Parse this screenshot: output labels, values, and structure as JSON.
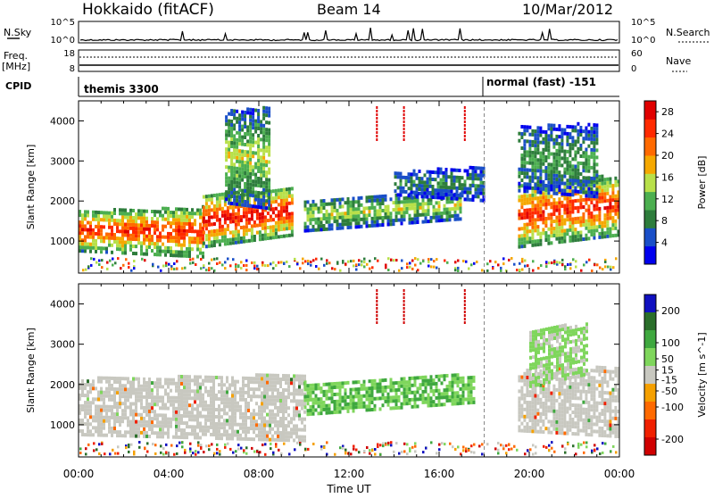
{
  "header": {
    "site": "Hokkaido (fitACF)",
    "beam": "Beam 14",
    "date": "10/Mar/2012"
  },
  "panel_labels": {
    "nsky": "N.Sky",
    "nsearch": "N.Search",
    "freq_top": "Freq.",
    "freq_unit": "[MHz]",
    "nave": "Nave",
    "cpid": "CPID"
  },
  "noise_axis": {
    "left_top": "10^5",
    "left_bottom": "10^0",
    "right_top": "10^5",
    "right_bottom": "10^0"
  },
  "freq_axis": {
    "left_top": "18",
    "left_bottom": "8",
    "right_top": "60",
    "right_bottom": "0"
  },
  "cpid": [
    {
      "label": "themis 3300",
      "start": "00:00",
      "end": "18:00"
    },
    {
      "label": "normal (fast) -151",
      "start": "18:00",
      "end": "24:00"
    }
  ],
  "colors": {
    "power_scale": [
      "#0000ee",
      "#1a4fc8",
      "#2e7d3c",
      "#4caf50",
      "#b8e04a",
      "#f5a800",
      "#ff6a00",
      "#ff2a00",
      "#e00000"
    ],
    "velocity_scale": [
      "#1010c0",
      "#2a6e2a",
      "#3fa83f",
      "#7fd65c",
      "#c8c8c0",
      "#f5a000",
      "#ff6a00",
      "#f02000",
      "#d00000"
    ],
    "ground_gray": "#c8c8c0"
  },
  "chart_data": [
    {
      "type": "heatmap",
      "title": "Power",
      "ylabel": "Slant Range [km]",
      "xlabel": "Time UT",
      "x_ticks": [
        "00:00",
        "04:00",
        "08:00",
        "12:00",
        "16:00",
        "20:00",
        "00:00"
      ],
      "y_ticks": [
        1000,
        2000,
        3000,
        4000
      ],
      "ylim": [
        200,
        4500
      ],
      "colorbar": {
        "label": "Power [dB]",
        "ticks": [
          4,
          8,
          12,
          16,
          20,
          24,
          28
        ],
        "range": [
          0,
          30
        ]
      },
      "echo_bands": [
        {
          "t_start": 0,
          "t_end": 5.5,
          "range_low": 800,
          "range_high": 1800,
          "power": 24
        },
        {
          "t_start": 5.5,
          "t_end": 9.5,
          "range_low": 900,
          "range_high": 2200,
          "power": 26
        },
        {
          "t_start": 6.5,
          "t_end": 8.5,
          "range_low": 2000,
          "range_high": 4300,
          "power": 14
        },
        {
          "t_start": 10,
          "t_end": 17,
          "range_low": 1300,
          "range_high": 2100,
          "power": 14
        },
        {
          "t_start": 14,
          "t_end": 18,
          "range_low": 2200,
          "range_high": 2800,
          "power": 8
        },
        {
          "t_start": 19.5,
          "t_end": 24,
          "range_low": 900,
          "range_high": 2500,
          "power": 24
        },
        {
          "t_start": 19.5,
          "t_end": 23,
          "range_low": 2300,
          "range_high": 3900,
          "power": 10
        }
      ]
    },
    {
      "type": "heatmap",
      "title": "Velocity",
      "ylabel": "Slant Range [km]",
      "xlabel": "Time UT",
      "x_ticks": [
        "00:00",
        "04:00",
        "08:00",
        "12:00",
        "16:00",
        "20:00",
        "00:00"
      ],
      "y_ticks": [
        1000,
        2000,
        3000,
        4000
      ],
      "ylim": [
        200,
        4500
      ],
      "colorbar": {
        "label": "Velocity [m s^-1]",
        "ticks": [
          200,
          100,
          50,
          15,
          -15,
          -50,
          -100,
          -200
        ],
        "range": [
          -250,
          250
        ]
      },
      "echo_bands": [
        {
          "t_start": 0,
          "t_end": 10,
          "range_low": 800,
          "range_high": 2200,
          "velocity": 0
        },
        {
          "t_start": 10,
          "t_end": 17.5,
          "range_low": 1300,
          "range_high": 2100,
          "velocity": 80
        },
        {
          "t_start": 19.5,
          "t_end": 24,
          "range_low": 900,
          "range_high": 2400,
          "velocity": 0
        },
        {
          "t_start": 20,
          "t_end": 22.5,
          "range_low": 2000,
          "range_high": 3400,
          "velocity": 40
        }
      ]
    }
  ]
}
